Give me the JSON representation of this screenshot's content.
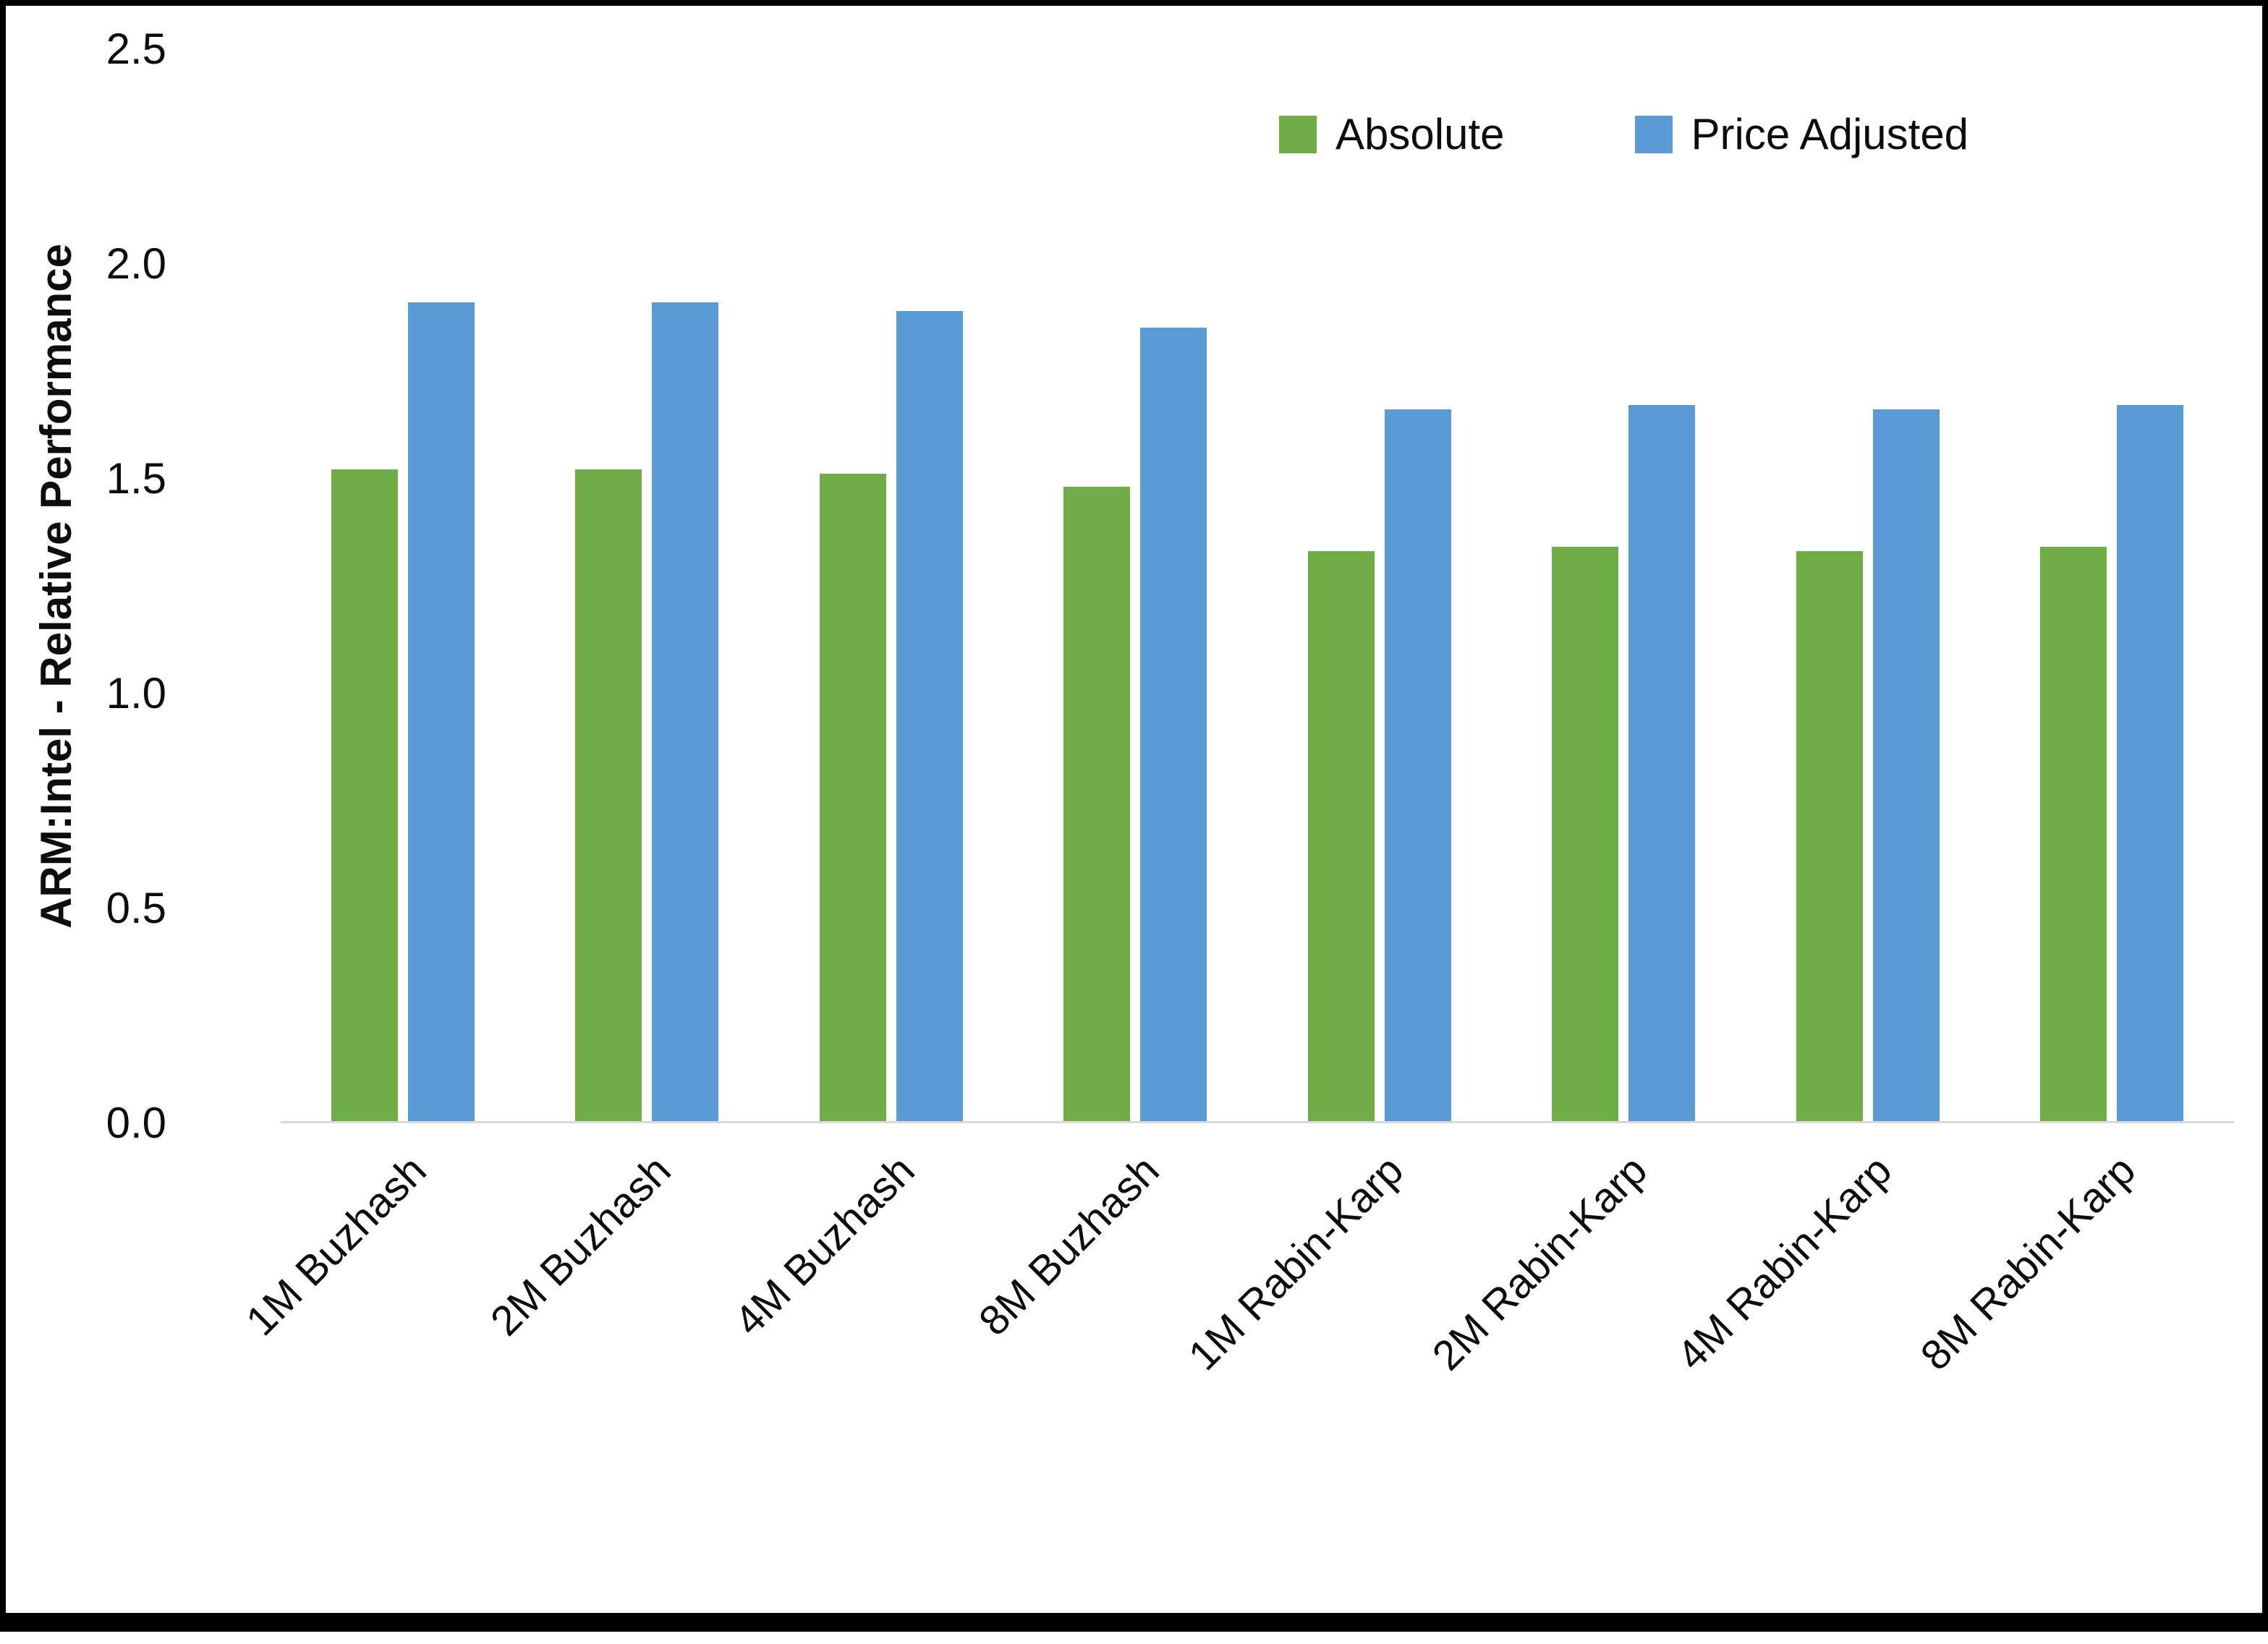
{
  "chart_data": {
    "type": "bar",
    "title": "",
    "xlabel": "",
    "ylabel": "ARM:Intel - Relative Performance",
    "ylim": [
      0,
      2.5
    ],
    "yticks": [
      "0.0",
      "0.5",
      "1.0",
      "1.5",
      "2.0",
      "2.5"
    ],
    "grid": false,
    "legend_position": "top-right",
    "categories": [
      "1M Buzhash",
      "2M Buzhash",
      "4M Buzhash",
      "8M Buzhash",
      "1M Rabin-Karp",
      "2M Rabin-Karp",
      "4M Rabin-Karp",
      "8M Rabin-Karp"
    ],
    "series": [
      {
        "name": "Absolute",
        "color": "#70AD47",
        "values": [
          1.52,
          1.52,
          1.51,
          1.48,
          1.33,
          1.34,
          1.33,
          1.34
        ]
      },
      {
        "name": "Price Adjusted",
        "color": "#5B9BD5",
        "values": [
          1.91,
          1.91,
          1.89,
          1.85,
          1.66,
          1.67,
          1.66,
          1.67
        ]
      }
    ]
  }
}
